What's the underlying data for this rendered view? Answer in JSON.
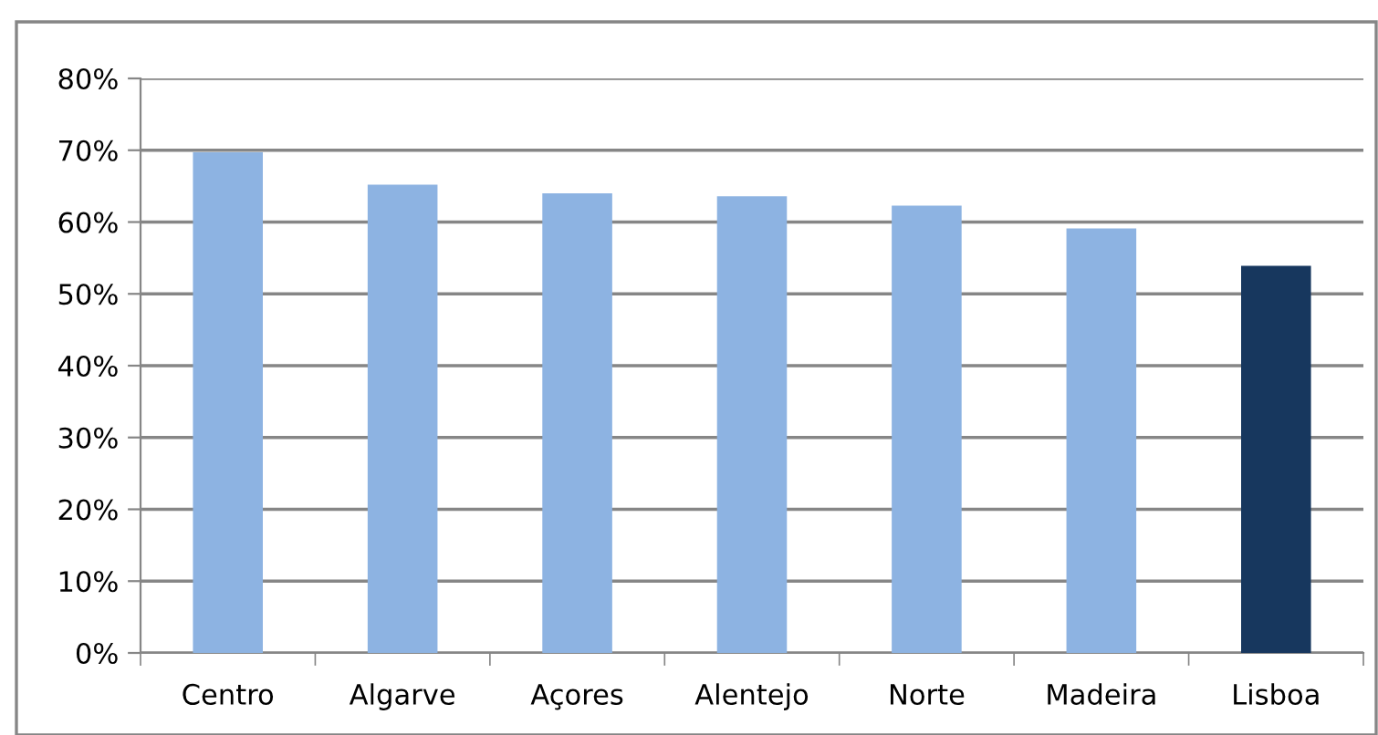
{
  "chart_data": {
    "type": "bar",
    "categories": [
      "Centro",
      "Algarve",
      "Açores",
      "Alentejo",
      "Norte",
      "Madeira",
      "Lisboa"
    ],
    "values": [
      69.7,
      65.2,
      64.0,
      63.6,
      62.3,
      59.1,
      53.9
    ],
    "colors": [
      "#8db3e2",
      "#8db3e2",
      "#8db3e2",
      "#8db3e2",
      "#8db3e2",
      "#8db3e2",
      "#17375e"
    ],
    "ylim": [
      0,
      80
    ],
    "yticks": [
      {
        "value": 0,
        "label": "0%"
      },
      {
        "value": 10,
        "label": "10%"
      },
      {
        "value": 20,
        "label": "20%"
      },
      {
        "value": 30,
        "label": "30%"
      },
      {
        "value": 40,
        "label": "40%"
      },
      {
        "value": 50,
        "label": "50%"
      },
      {
        "value": 60,
        "label": "60%"
      },
      {
        "value": 70,
        "label": "70%"
      },
      {
        "value": 80,
        "label": "80%"
      }
    ],
    "grid": "y",
    "legend": false
  }
}
